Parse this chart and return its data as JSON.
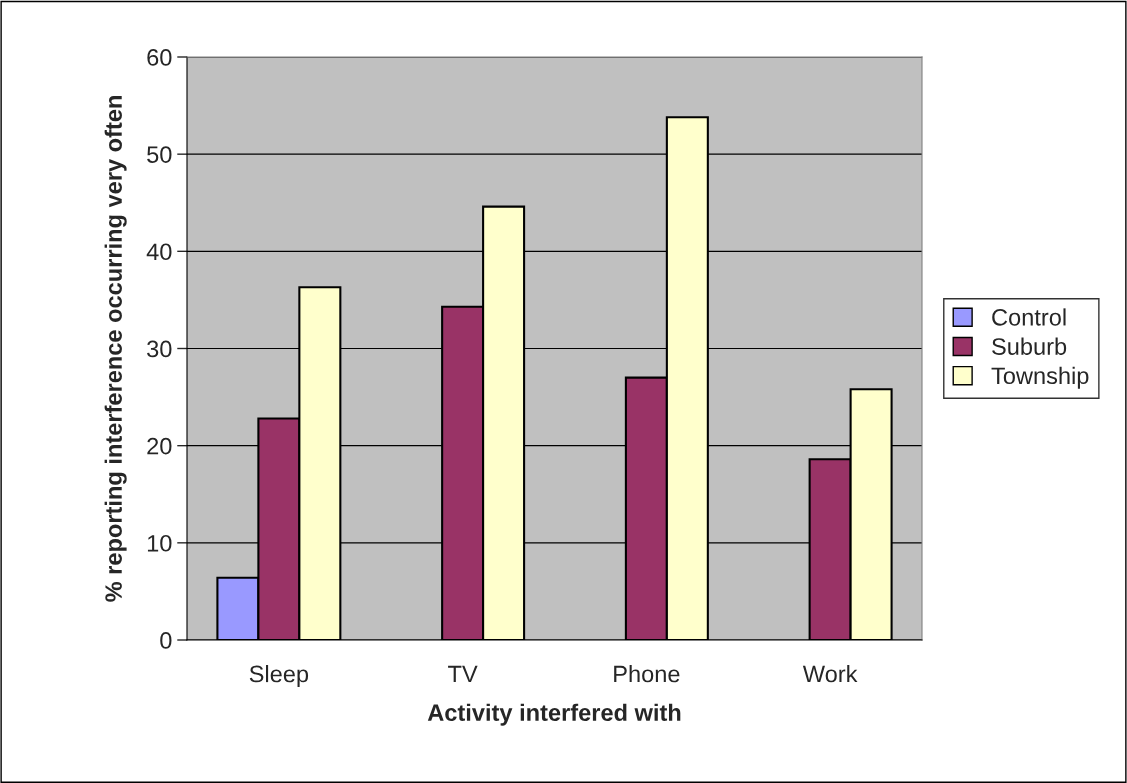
{
  "chart_data": {
    "type": "bar",
    "xlabel": "Activity interfered with",
    "ylabel": "% reporting interference occurring very often",
    "categories": [
      "Sleep",
      "TV",
      "Phone",
      "Work"
    ],
    "series": [
      {
        "name": "Control",
        "color": "#9999ff",
        "values": [
          6.4,
          null,
          null,
          null
        ]
      },
      {
        "name": "Suburb",
        "color": "#993366",
        "values": [
          22.8,
          34.3,
          27.0,
          18.6
        ]
      },
      {
        "name": "Township",
        "color": "#ffffcc",
        "values": [
          36.3,
          44.6,
          53.8,
          25.8
        ]
      }
    ],
    "ylim": [
      0,
      60
    ],
    "yticks": [
      0,
      10,
      20,
      30,
      40,
      50,
      60
    ],
    "grid": "y",
    "legend": "right"
  }
}
